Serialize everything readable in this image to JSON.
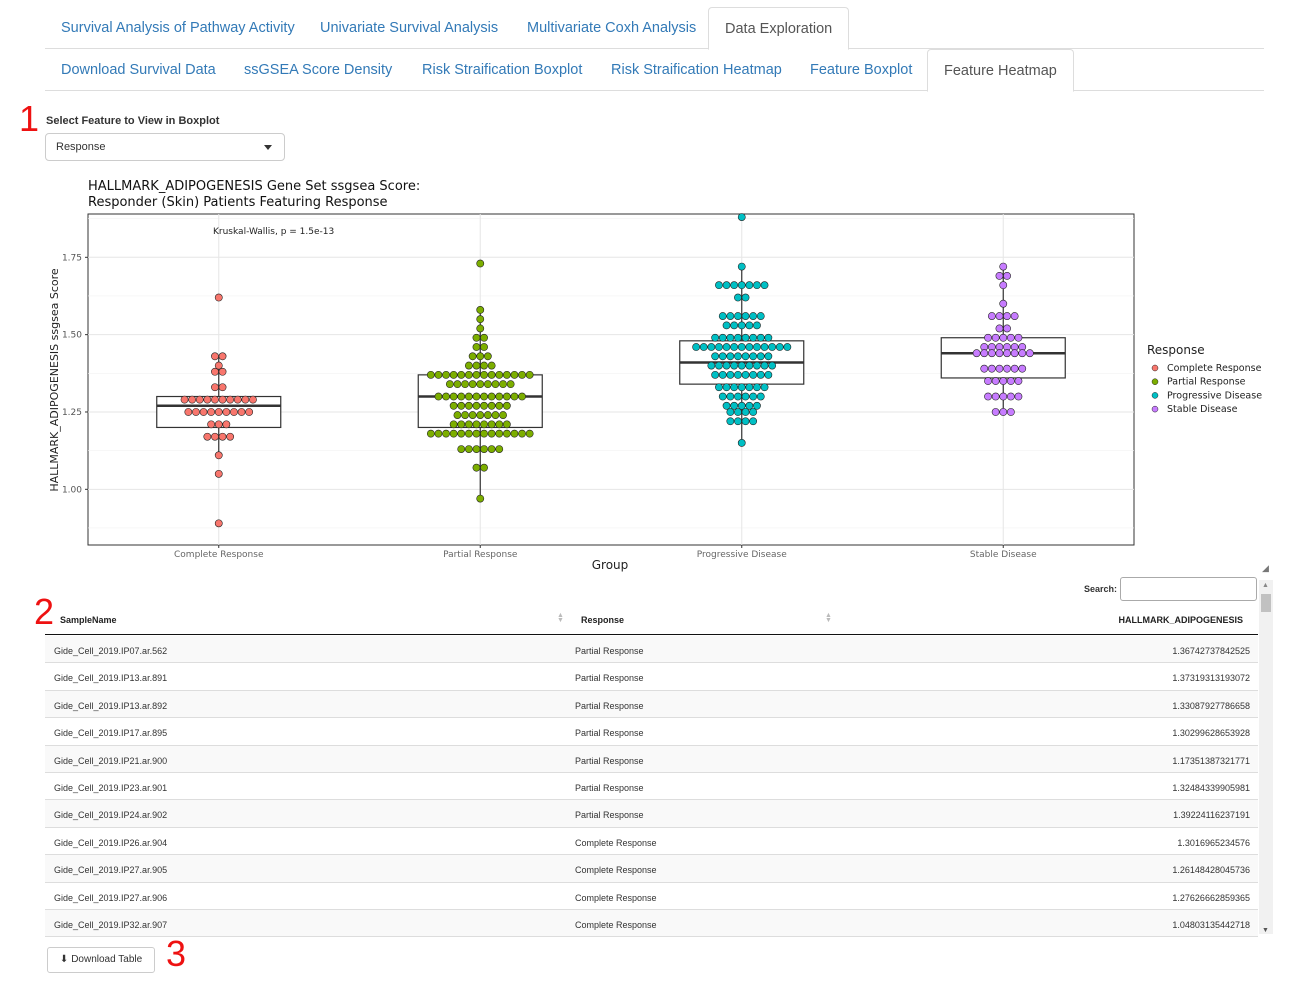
{
  "tabs_row1": [
    {
      "label": "Survival Analysis of Pathway Activity",
      "active": false
    },
    {
      "label": "Univariate Survival Analysis",
      "active": false
    },
    {
      "label": "Multivariate Coxh Analysis",
      "active": false
    },
    {
      "label": "Data Exploration",
      "active": true
    }
  ],
  "tabs_row2": [
    {
      "label": "Download Survival Data",
      "active": false
    },
    {
      "label": "ssGSEA Score Density",
      "active": false
    },
    {
      "label": "Risk Straification Boxplot",
      "active": false
    },
    {
      "label": "Risk Straification Heatmap",
      "active": false
    },
    {
      "label": "Feature Boxplot",
      "active": false
    },
    {
      "label": "Feature Heatmap",
      "active": true
    }
  ],
  "markers": [
    "1",
    "2",
    "3"
  ],
  "feature_select": {
    "label": "Select Feature to View in Boxplot",
    "value": "Response"
  },
  "chart_data": {
    "type": "box",
    "title_line1": "HALLMARK_ADIPOGENESIS Gene Set ssgsea Score:",
    "title_line2": "Responder (Skin) Patients Featuring Response",
    "annotation": "Kruskal-Wallis, p = 1.5e-13",
    "xlabel": "Group",
    "ylabel": "HALLMARK_ADIPOGENESIS ssgsea Score",
    "ylim": [
      0.82,
      1.89
    ],
    "yticks": [
      "1.00",
      "1.25",
      "1.50",
      "1.75"
    ],
    "grid": true,
    "legend_title": "Response",
    "legend_position": "right",
    "categories": [
      "Complete Response",
      "Partial Response",
      "Progressive Disease",
      "Stable Disease"
    ],
    "colors": [
      "#F8766D",
      "#7CAE00",
      "#00BFC4",
      "#C77CFF"
    ],
    "boxes": [
      {
        "min": 1.11,
        "q1": 1.2,
        "median": 1.27,
        "q3": 1.3,
        "max": 1.43
      },
      {
        "min": 0.97,
        "q1": 1.2,
        "median": 1.3,
        "q3": 1.37,
        "max": 1.58
      },
      {
        "min": 1.15,
        "q1": 1.34,
        "median": 1.41,
        "q3": 1.48,
        "max": 1.72
      },
      {
        "min": 1.24,
        "q1": 1.36,
        "median": 1.44,
        "q3": 1.49,
        "max": 1.72
      }
    ],
    "points": [
      [
        1.62,
        1.43,
        1.43,
        1.4,
        1.38,
        1.38,
        1.33,
        1.33,
        1.29,
        1.29,
        1.29,
        1.29,
        1.29,
        1.29,
        1.29,
        1.29,
        1.29,
        1.29,
        1.25,
        1.25,
        1.25,
        1.25,
        1.25,
        1.25,
        1.25,
        1.25,
        1.25,
        1.21,
        1.21,
        1.21,
        1.17,
        1.17,
        1.17,
        1.17,
        1.11,
        1.05,
        0.89
      ],
      [
        1.73,
        1.58,
        1.55,
        1.52,
        1.49,
        1.49,
        1.46,
        1.46,
        1.43,
        1.43,
        1.43,
        1.4,
        1.4,
        1.4,
        1.4,
        1.37,
        1.37,
        1.37,
        1.37,
        1.37,
        1.37,
        1.37,
        1.37,
        1.37,
        1.37,
        1.37,
        1.37,
        1.37,
        1.37,
        1.34,
        1.34,
        1.34,
        1.34,
        1.34,
        1.34,
        1.34,
        1.34,
        1.34,
        1.3,
        1.3,
        1.3,
        1.3,
        1.3,
        1.3,
        1.3,
        1.3,
        1.3,
        1.3,
        1.3,
        1.3,
        1.27,
        1.27,
        1.27,
        1.27,
        1.27,
        1.27,
        1.27,
        1.27,
        1.24,
        1.24,
        1.24,
        1.24,
        1.24,
        1.24,
        1.24,
        1.21,
        1.21,
        1.21,
        1.21,
        1.21,
        1.21,
        1.21,
        1.21,
        1.18,
        1.18,
        1.18,
        1.18,
        1.18,
        1.18,
        1.18,
        1.18,
        1.18,
        1.18,
        1.18,
        1.18,
        1.18,
        1.18,
        1.13,
        1.13,
        1.13,
        1.13,
        1.13,
        1.13,
        1.07,
        1.07,
        0.97
      ],
      [
        1.88,
        1.72,
        1.66,
        1.66,
        1.66,
        1.66,
        1.66,
        1.66,
        1.66,
        1.62,
        1.62,
        1.56,
        1.56,
        1.56,
        1.56,
        1.56,
        1.56,
        1.53,
        1.53,
        1.53,
        1.53,
        1.53,
        1.49,
        1.49,
        1.49,
        1.49,
        1.49,
        1.49,
        1.49,
        1.49,
        1.46,
        1.46,
        1.46,
        1.46,
        1.46,
        1.46,
        1.46,
        1.46,
        1.46,
        1.46,
        1.46,
        1.46,
        1.46,
        1.43,
        1.43,
        1.43,
        1.43,
        1.43,
        1.43,
        1.43,
        1.43,
        1.4,
        1.4,
        1.4,
        1.4,
        1.4,
        1.4,
        1.4,
        1.4,
        1.4,
        1.37,
        1.37,
        1.37,
        1.37,
        1.37,
        1.37,
        1.37,
        1.37,
        1.33,
        1.33,
        1.33,
        1.33,
        1.33,
        1.33,
        1.33,
        1.3,
        1.3,
        1.3,
        1.3,
        1.3,
        1.3,
        1.27,
        1.27,
        1.27,
        1.27,
        1.27,
        1.25,
        1.25,
        1.25,
        1.25,
        1.22,
        1.22,
        1.22,
        1.22,
        1.15
      ],
      [
        1.72,
        1.69,
        1.69,
        1.66,
        1.6,
        1.56,
        1.56,
        1.56,
        1.56,
        1.52,
        1.52,
        1.49,
        1.49,
        1.49,
        1.49,
        1.49,
        1.46,
        1.46,
        1.46,
        1.46,
        1.46,
        1.46,
        1.44,
        1.44,
        1.44,
        1.44,
        1.44,
        1.44,
        1.44,
        1.44,
        1.39,
        1.39,
        1.39,
        1.39,
        1.39,
        1.39,
        1.35,
        1.35,
        1.35,
        1.35,
        1.35,
        1.3,
        1.3,
        1.3,
        1.3,
        1.3,
        1.25,
        1.25,
        1.25
      ]
    ]
  },
  "table": {
    "search_label": "Search:",
    "search_value": "",
    "columns": [
      "SampleName",
      "Response",
      "HALLMARK_ADIPOGENESIS"
    ],
    "rows": [
      [
        "Gide_Cell_2019.IP07.ar.562",
        "Partial Response",
        "1.36742737842525"
      ],
      [
        "Gide_Cell_2019.IP13.ar.891",
        "Partial Response",
        "1.37319313193072"
      ],
      [
        "Gide_Cell_2019.IP13.ar.892",
        "Partial Response",
        "1.33087927786658"
      ],
      [
        "Gide_Cell_2019.IP17.ar.895",
        "Partial Response",
        "1.30299628653928"
      ],
      [
        "Gide_Cell_2019.IP21.ar.900",
        "Partial Response",
        "1.17351387321771"
      ],
      [
        "Gide_Cell_2019.IP23.ar.901",
        "Partial Response",
        "1.32484339905981"
      ],
      [
        "Gide_Cell_2019.IP24.ar.902",
        "Partial Response",
        "1.39224116237191"
      ],
      [
        "Gide_Cell_2019.IP26.ar.904",
        "Complete Response",
        "1.3016965234576"
      ],
      [
        "Gide_Cell_2019.IP27.ar.905",
        "Complete Response",
        "1.26148428045736"
      ],
      [
        "Gide_Cell_2019.IP27.ar.906",
        "Complete Response",
        "1.27626662859365"
      ],
      [
        "Gide_Cell_2019.IP32.ar.907",
        "Complete Response",
        "1.04803135442718"
      ]
    ]
  },
  "download_button": {
    "label": "Download Table",
    "icon": "download-icon"
  }
}
